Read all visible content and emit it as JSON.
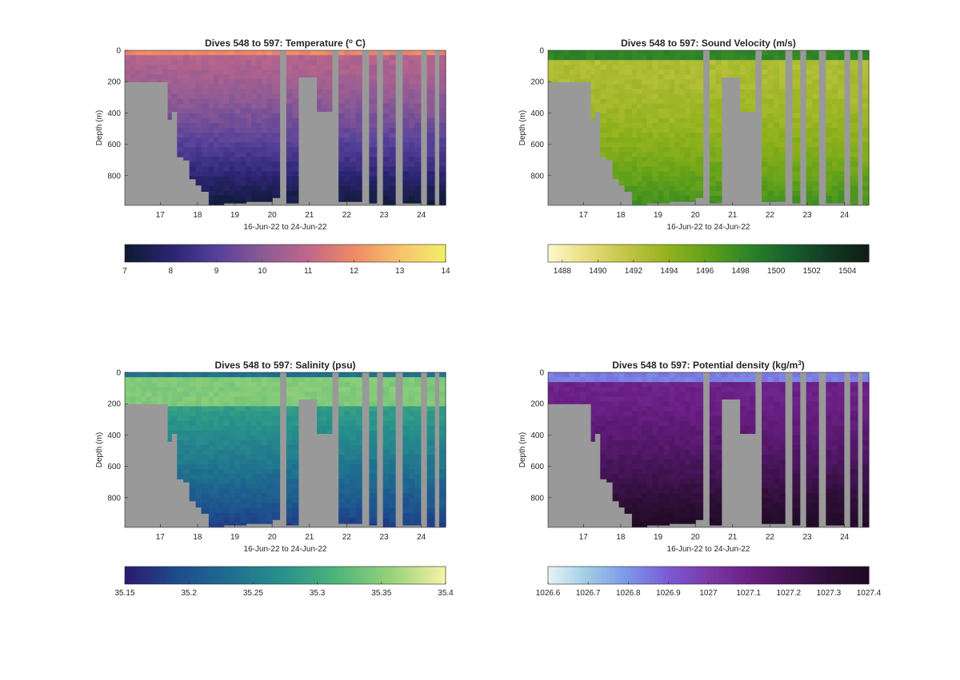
{
  "figure": {
    "panels": [
      {
        "id": "temperature",
        "title": "Dives 548 to 597: Temperature (",
        "title_sup": "o",
        "title_after": " C)",
        "xlabel": "16-Jun-22 to 24-Jun-22",
        "ylabel": "Depth (m)",
        "colorbar": {
          "ticks": [
            "7",
            "8",
            "9",
            "10",
            "11",
            "12",
            "13",
            "14"
          ],
          "range": [
            7,
            14
          ],
          "stops": [
            "#0d1a30",
            "#2a2470",
            "#55409a",
            "#8b5a95",
            "#c0678a",
            "#ef8a64",
            "#f7c36c",
            "#f1ef68"
          ]
        }
      },
      {
        "id": "sound-velocity",
        "title": "Dives 548 to 597: Sound Velocity (m/s)",
        "title_sup": "",
        "title_after": "",
        "xlabel": "16-Jun-22 to 24-Jun-22",
        "ylabel": "Depth (m)",
        "colorbar": {
          "ticks": [
            "1488",
            "1490",
            "1492",
            "1494",
            "1496",
            "1498",
            "1500",
            "1502",
            "1504"
          ],
          "range": [
            1487.2,
            1505.2
          ],
          "stops": [
            "#fdf9cd",
            "#e6dc7c",
            "#c1c444",
            "#93b21c",
            "#60a01a",
            "#2e8428",
            "#18602e",
            "#133a22",
            "#101c14"
          ]
        }
      },
      {
        "id": "salinity",
        "title": "Dives 548 to 597: Salinity (psu)",
        "title_sup": "",
        "title_after": "",
        "xlabel": "16-Jun-22 to 24-Jun-22",
        "ylabel": "Depth (m)",
        "colorbar": {
          "ticks": [
            "35.15",
            "35.2",
            "35.25",
            "35.3",
            "35.35",
            "35.4"
          ],
          "range": [
            35.15,
            35.4
          ],
          "stops": [
            "#2a1a6e",
            "#1e4c8e",
            "#1f6f8f",
            "#29938a",
            "#4fb67a",
            "#99d27a",
            "#f7f3a6"
          ]
        }
      },
      {
        "id": "potential-density",
        "title": "Dives 548 to 597: Potential density (kg/m",
        "title_sup": "3",
        "title_after": ")",
        "xlabel": "16-Jun-22 to 24-Jun-22",
        "ylabel": "Depth (m)",
        "colorbar": {
          "ticks": [
            "1026.6",
            "1026.7",
            "1026.8",
            "1026.9",
            "1027",
            "1027.1",
            "1027.2",
            "1027.3",
            "1027.4"
          ],
          "range": [
            1026.6,
            1027.4
          ],
          "stops": [
            "#e6f4f4",
            "#9fcbe6",
            "#7c95e8",
            "#7a5ad6",
            "#7c3aa8",
            "#6a1f84",
            "#4c1660",
            "#2e0f38",
            "#1e0a22"
          ]
        }
      }
    ]
  },
  "chart_data": [
    {
      "type": "heatmap",
      "title": "Dives 548 to 597: Temperature (o C)",
      "xlabel": "16-Jun-22 to 24-Jun-22",
      "ylabel": "Depth (m)",
      "x_ticks": [
        "17",
        "18",
        "19",
        "20",
        "21",
        "22",
        "23",
        "24"
      ],
      "y_ticks": [
        "0",
        "200",
        "400",
        "600",
        "800"
      ],
      "xlim": [
        16.05,
        24.65
      ],
      "ylim": [
        0,
        990
      ],
      "y_reversed": true,
      "colorbar_range": [
        7,
        14
      ],
      "surface_value": 11.8,
      "deep_value": 7.2
    },
    {
      "type": "heatmap",
      "title": "Dives 548 to 597: Sound Velocity (m/s)",
      "xlabel": "16-Jun-22 to 24-Jun-22",
      "ylabel": "Depth (m)",
      "x_ticks": [
        "17",
        "18",
        "19",
        "20",
        "21",
        "22",
        "23",
        "24"
      ],
      "y_ticks": [
        "0",
        "200",
        "400",
        "600",
        "800"
      ],
      "xlim": [
        16.05,
        24.65
      ],
      "ylim": [
        0,
        990
      ],
      "y_reversed": true,
      "colorbar_range": [
        1487.2,
        1505.2
      ],
      "surface_value": 1499,
      "deep_value": 1493
    },
    {
      "type": "heatmap",
      "title": "Dives 548 to 597: Salinity (psu)",
      "xlabel": "16-Jun-22 to 24-Jun-22",
      "ylabel": "Depth (m)",
      "x_ticks": [
        "17",
        "18",
        "19",
        "20",
        "21",
        "22",
        "23",
        "24"
      ],
      "y_ticks": [
        "0",
        "200",
        "400",
        "600",
        "800"
      ],
      "xlim": [
        16.05,
        24.65
      ],
      "ylim": [
        0,
        990
      ],
      "y_reversed": true,
      "colorbar_range": [
        35.15,
        35.4
      ],
      "surface_value": 35.32,
      "deep_value": 35.19
    },
    {
      "type": "heatmap",
      "title": "Dives 548 to 597: Potential density (kg/m3)",
      "xlabel": "16-Jun-22 to 24-Jun-22",
      "ylabel": "Depth (m)",
      "x_ticks": [
        "17",
        "18",
        "19",
        "20",
        "21",
        "22",
        "23",
        "24"
      ],
      "y_ticks": [
        "0",
        "200",
        "400",
        "600",
        "800"
      ],
      "xlim": [
        16.05,
        24.65
      ],
      "ylim": [
        0,
        990
      ],
      "y_reversed": true,
      "colorbar_range": [
        1026.6,
        1027.4
      ],
      "surface_value": 1026.85,
      "deep_value": 1027.38
    }
  ]
}
